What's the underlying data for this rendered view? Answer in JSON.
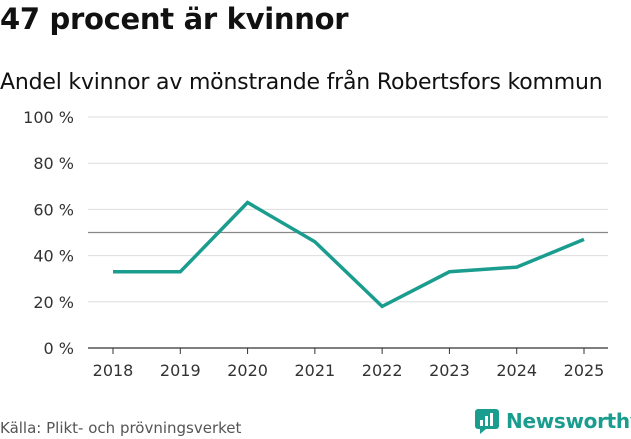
{
  "header": {
    "title": "47 procent är kvinnor",
    "subtitle": "Andel kvinnor av mönstrande från Robertsfors kommun"
  },
  "footer": {
    "source": "Källa: Plikt- och prövningsverket",
    "brand": "Newsworthy"
  },
  "colors": {
    "line": "#1a9d8f",
    "reference": "#888888",
    "grid": "#dddddd",
    "brand": "#1a9d8f"
  },
  "chart_data": {
    "type": "line",
    "title": "47 procent är kvinnor",
    "subtitle": "Andel kvinnor av mönstrande från Robertsfors kommun",
    "x": [
      "2018",
      "2019",
      "2020",
      "2021",
      "2022",
      "2023",
      "2024",
      "2025"
    ],
    "series": [
      {
        "name": "Andel kvinnor",
        "values": [
          33,
          33,
          63,
          46,
          18,
          33,
          35,
          47
        ]
      }
    ],
    "reference_line": 50,
    "ylim": [
      0,
      100
    ],
    "yticks": [
      0,
      20,
      40,
      60,
      80,
      100
    ],
    "ytick_labels": [
      "0 %",
      "20 %",
      "40 %",
      "60 %",
      "80 %",
      "100 %"
    ],
    "grid": true,
    "xlabel": "",
    "ylabel": ""
  }
}
